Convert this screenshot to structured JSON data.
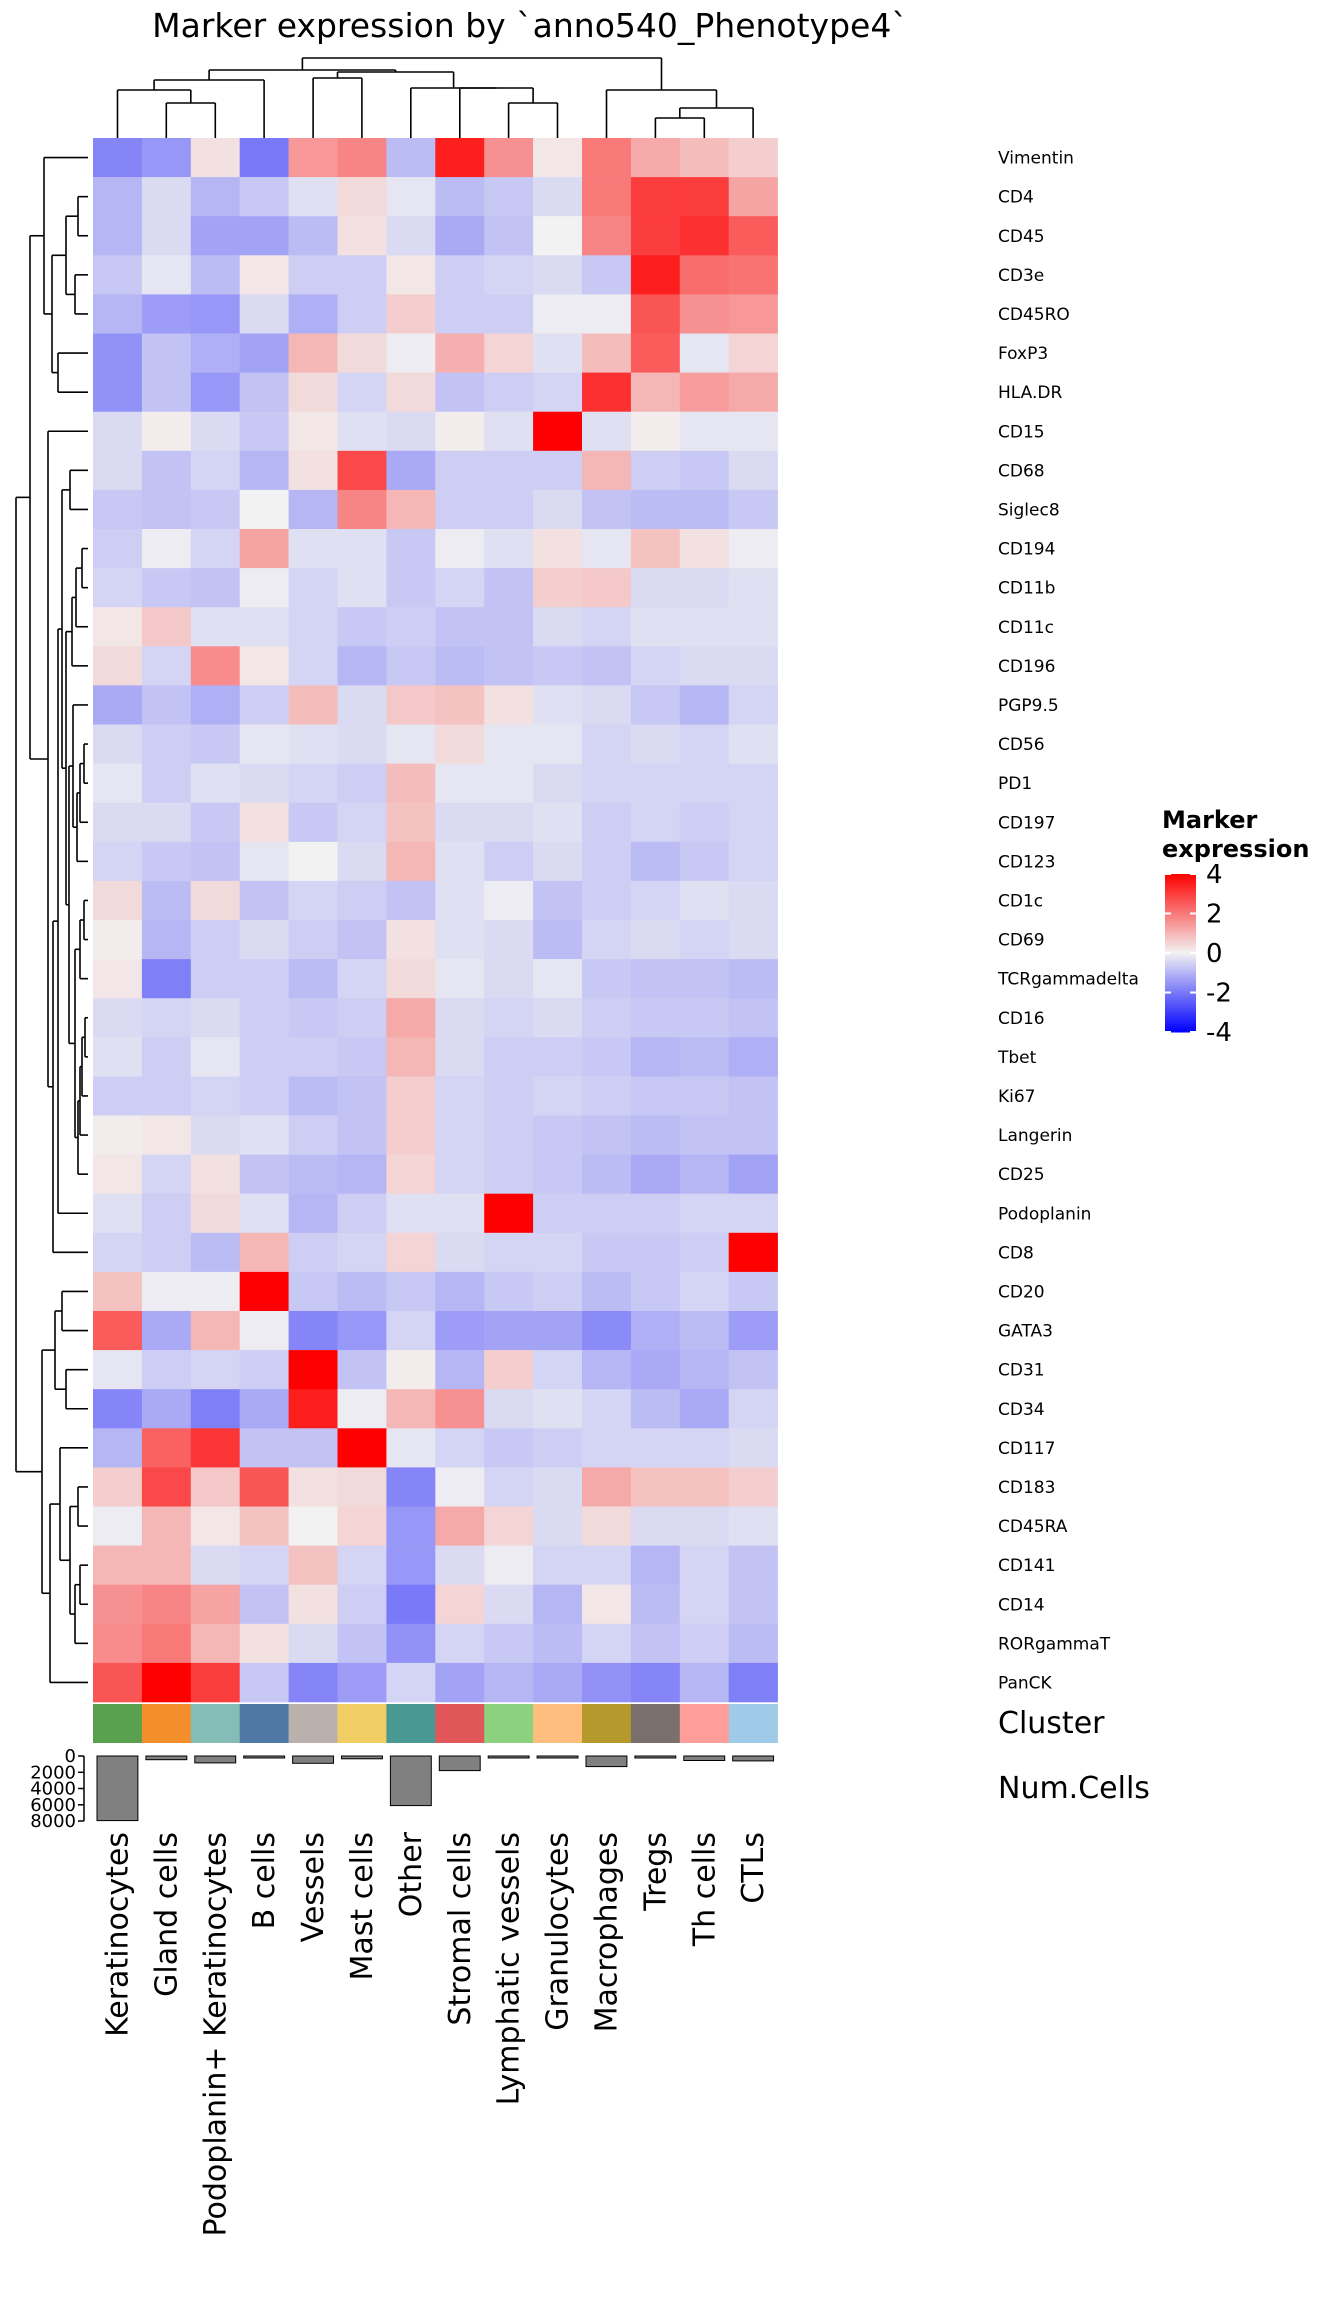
{
  "chart_data": {
    "type": "heatmap",
    "title": "Marker expression by `anno540_Phenotype4`",
    "columns": [
      "Keratinocytes",
      "Gland cells",
      "Podoplanin+ Keratinocytes",
      "B cells",
      "Vessels",
      "Mast cells",
      "Other",
      "Stromal cells",
      "Lymphatic vessels",
      "Granulocytes",
      "Macrophages",
      "Tregs",
      "Th cells",
      "CTLs"
    ],
    "rows": [
      "Vimentin",
      "CD4",
      "CD45",
      "CD3e",
      "CD45RO",
      "FoxP3",
      "HLA.DR",
      "CD15",
      "CD68",
      "Siglec8",
      "CD194",
      "CD11b",
      "CD11c",
      "CD196",
      "PGP9.5",
      "CD56",
      "PD1",
      "CD197",
      "CD123",
      "CD1c",
      "CD69",
      "TCRgammadelta",
      "CD16",
      "Tbet",
      "Ki67",
      "Langerin",
      "CD25",
      "Podoplanin",
      "CD8",
      "CD20",
      "GATA3",
      "CD31",
      "CD34",
      "CD117",
      "CD183",
      "CD45RA",
      "CD141",
      "CD14",
      "RORgammaT",
      "PanCK"
    ],
    "values": [
      [
        -1.8,
        -1.5,
        0.3,
        -2.0,
        1.5,
        1.8,
        -0.9,
        3.5,
        1.6,
        0.2,
        2.0,
        1.2,
        0.9,
        0.6
      ],
      [
        -1.0,
        -0.4,
        -1.0,
        -0.7,
        -0.3,
        0.4,
        -0.2,
        -0.9,
        -0.7,
        -0.4,
        2.0,
        3.0,
        3.0,
        1.3
      ],
      [
        -1.0,
        -0.4,
        -1.3,
        -1.3,
        -0.9,
        0.3,
        -0.4,
        -1.2,
        -0.8,
        0.0,
        1.8,
        3.0,
        3.2,
        2.5
      ],
      [
        -0.7,
        -0.2,
        -0.9,
        0.2,
        -0.6,
        -0.6,
        0.2,
        -0.6,
        -0.5,
        -0.4,
        -0.7,
        3.5,
        2.2,
        2.1
      ],
      [
        -1.0,
        -1.4,
        -1.5,
        -0.4,
        -1.1,
        -0.6,
        0.6,
        -0.6,
        -0.6,
        -0.1,
        -0.1,
        2.6,
        1.6,
        1.5
      ],
      [
        -1.6,
        -0.8,
        -1.1,
        -1.3,
        1.0,
        0.4,
        -0.1,
        1.1,
        0.5,
        -0.3,
        0.9,
        2.5,
        -0.2,
        0.5
      ],
      [
        -1.6,
        -0.8,
        -1.5,
        -0.8,
        0.4,
        -0.5,
        0.4,
        -0.8,
        -0.6,
        -0.5,
        3.2,
        1.0,
        1.4,
        1.2
      ],
      [
        -0.4,
        0.1,
        -0.4,
        -0.7,
        0.2,
        -0.3,
        -0.4,
        0.1,
        -0.3,
        4.0,
        -0.3,
        0.1,
        -0.2,
        -0.2
      ],
      [
        -0.4,
        -0.8,
        -0.5,
        -1.0,
        0.3,
        2.8,
        -1.2,
        -0.6,
        -0.6,
        -0.6,
        1.0,
        -0.6,
        -0.7,
        -0.4
      ],
      [
        -0.7,
        -0.8,
        -0.7,
        0.0,
        -1.0,
        1.8,
        1.0,
        -0.6,
        -0.6,
        -0.4,
        -0.8,
        -0.9,
        -0.9,
        -0.7
      ],
      [
        -0.6,
        -0.1,
        -0.5,
        1.3,
        -0.3,
        -0.3,
        -0.7,
        -0.1,
        -0.3,
        0.3,
        -0.2,
        0.8,
        0.3,
        -0.1
      ],
      [
        -0.5,
        -0.7,
        -0.8,
        -0.1,
        -0.5,
        -0.3,
        -0.7,
        -0.5,
        -0.8,
        0.6,
        0.7,
        -0.4,
        -0.4,
        -0.3
      ],
      [
        0.2,
        0.7,
        -0.3,
        -0.3,
        -0.5,
        -0.7,
        -0.6,
        -0.8,
        -0.8,
        -0.4,
        -0.5,
        -0.3,
        -0.3,
        -0.3
      ],
      [
        0.4,
        -0.5,
        1.7,
        0.2,
        -0.5,
        -1.0,
        -0.7,
        -0.9,
        -0.8,
        -0.7,
        -0.8,
        -0.5,
        -0.4,
        -0.4
      ],
      [
        -1.2,
        -0.8,
        -1.1,
        -0.6,
        0.9,
        -0.4,
        0.7,
        0.8,
        0.3,
        -0.3,
        -0.4,
        -0.7,
        -1.0,
        -0.5
      ],
      [
        -0.4,
        -0.6,
        -0.7,
        -0.2,
        -0.3,
        -0.4,
        -0.2,
        0.4,
        -0.2,
        -0.2,
        -0.5,
        -0.4,
        -0.5,
        -0.3
      ],
      [
        -0.2,
        -0.6,
        -0.3,
        -0.4,
        -0.5,
        -0.6,
        0.9,
        -0.2,
        -0.2,
        -0.4,
        -0.5,
        -0.5,
        -0.5,
        -0.5
      ],
      [
        -0.4,
        -0.4,
        -0.7,
        0.3,
        -0.7,
        -0.5,
        0.8,
        -0.4,
        -0.4,
        -0.3,
        -0.6,
        -0.5,
        -0.6,
        -0.5
      ],
      [
        -0.5,
        -0.7,
        -0.8,
        -0.2,
        0.0,
        -0.4,
        1.0,
        -0.3,
        -0.6,
        -0.4,
        -0.6,
        -0.9,
        -0.7,
        -0.5
      ],
      [
        0.4,
        -0.9,
        0.4,
        -0.8,
        -0.5,
        -0.6,
        -0.8,
        -0.3,
        -0.1,
        -0.8,
        -0.6,
        -0.5,
        -0.3,
        -0.4
      ],
      [
        0.1,
        -1.0,
        -0.6,
        -0.4,
        -0.6,
        -0.8,
        0.3,
        -0.3,
        -0.4,
        -0.9,
        -0.5,
        -0.4,
        -0.5,
        -0.4
      ],
      [
        0.2,
        -1.9,
        -0.6,
        -0.6,
        -0.9,
        -0.5,
        0.4,
        -0.2,
        -0.4,
        -0.2,
        -0.7,
        -0.8,
        -0.8,
        -0.9
      ],
      [
        -0.4,
        -0.5,
        -0.4,
        -0.6,
        -0.7,
        -0.6,
        1.2,
        -0.4,
        -0.5,
        -0.4,
        -0.6,
        -0.7,
        -0.7,
        -0.8
      ],
      [
        -0.3,
        -0.6,
        -0.2,
        -0.6,
        -0.6,
        -0.7,
        1.0,
        -0.4,
        -0.6,
        -0.6,
        -0.7,
        -1.0,
        -0.9,
        -1.1
      ],
      [
        -0.6,
        -0.6,
        -0.5,
        -0.6,
        -0.9,
        -0.8,
        0.6,
        -0.5,
        -0.6,
        -0.5,
        -0.6,
        -0.7,
        -0.7,
        -0.8
      ],
      [
        0.1,
        0.2,
        -0.4,
        -0.3,
        -0.6,
        -0.8,
        0.6,
        -0.5,
        -0.6,
        -0.7,
        -0.8,
        -0.9,
        -0.8,
        -0.8
      ],
      [
        0.2,
        -0.5,
        0.3,
        -0.8,
        -0.9,
        -1.0,
        0.5,
        -0.5,
        -0.6,
        -0.7,
        -0.9,
        -1.2,
        -1.0,
        -1.3
      ],
      [
        -0.3,
        -0.6,
        0.4,
        -0.3,
        -1.0,
        -0.6,
        -0.3,
        -0.3,
        4.0,
        -0.6,
        -0.6,
        -0.6,
        -0.5,
        -0.5
      ],
      [
        -0.5,
        -0.6,
        -0.9,
        1.0,
        -0.6,
        -0.5,
        0.5,
        -0.4,
        -0.5,
        -0.5,
        -0.7,
        -0.7,
        -0.6,
        4.0
      ],
      [
        0.8,
        -0.1,
        -0.1,
        4.0,
        -0.7,
        -0.9,
        -0.7,
        -1.0,
        -0.7,
        -0.6,
        -0.9,
        -0.7,
        -0.5,
        -0.7
      ],
      [
        2.5,
        -1.2,
        1.0,
        -0.1,
        -1.8,
        -1.5,
        -0.5,
        -1.4,
        -1.3,
        -1.3,
        -1.7,
        -1.1,
        -0.9,
        -1.4
      ],
      [
        -0.2,
        -0.6,
        -0.5,
        -0.6,
        4.0,
        -0.8,
        0.1,
        -1.0,
        0.6,
        -0.5,
        -1.0,
        -1.2,
        -1.0,
        -0.8
      ],
      [
        -1.8,
        -1.2,
        -1.9,
        -1.2,
        3.5,
        -0.1,
        1.0,
        1.6,
        -0.4,
        -0.3,
        -0.5,
        -0.9,
        -1.2,
        -0.5
      ],
      [
        -1.0,
        2.4,
        3.1,
        -0.8,
        -0.8,
        4.0,
        -0.2,
        -0.5,
        -0.7,
        -0.6,
        -0.5,
        -0.5,
        -0.5,
        -0.4
      ],
      [
        0.6,
        2.8,
        0.7,
        2.6,
        0.3,
        0.4,
        -1.8,
        -0.1,
        -0.5,
        -0.4,
        1.2,
        0.8,
        0.8,
        0.6
      ],
      [
        -0.1,
        1.0,
        0.2,
        0.8,
        0.0,
        0.5,
        -1.5,
        1.2,
        0.5,
        -0.4,
        0.4,
        -0.4,
        -0.4,
        -0.3
      ],
      [
        1.0,
        1.0,
        -0.4,
        -0.5,
        0.8,
        -0.5,
        -1.5,
        -0.4,
        -0.1,
        -0.5,
        -0.5,
        -1.0,
        -0.5,
        -0.8
      ],
      [
        1.6,
        1.8,
        1.3,
        -0.8,
        0.3,
        -0.6,
        -2.0,
        0.5,
        -0.4,
        -1.0,
        0.2,
        -0.9,
        -0.5,
        -0.8
      ],
      [
        1.7,
        2.0,
        1.0,
        0.3,
        -0.4,
        -0.8,
        -1.6,
        -0.5,
        -0.7,
        -0.9,
        -0.5,
        -0.8,
        -0.6,
        -0.9
      ],
      [
        2.6,
        4.0,
        3.0,
        -0.7,
        -1.8,
        -1.4,
        -0.5,
        -1.3,
        -1.0,
        -1.2,
        -1.6,
        -1.8,
        -1.0,
        -1.9
      ]
    ],
    "legend": {
      "title_lines": [
        "Marker",
        "expression"
      ],
      "ticks": [
        4,
        2,
        0,
        -2,
        -4
      ],
      "tick_labels": [
        "4",
        "2",
        "0",
        "-2",
        "-4"
      ],
      "range": [
        -4,
        4
      ],
      "colors": {
        "low": "#0000FF",
        "mid": "#F2F2F2",
        "high": "#FF0000"
      }
    },
    "annotation_cluster": {
      "label": "Cluster",
      "colors": [
        "#59A14F",
        "#F28E2B",
        "#86BCB6",
        "#4E79A7",
        "#BAB0AC",
        "#F1CE63",
        "#499894",
        "#E15759",
        "#8CD17D",
        "#FFBE7D",
        "#B6992D",
        "#79706E",
        "#FF9D9A",
        "#A0CBE8"
      ]
    },
    "annotation_num_cells": {
      "label": "Num.Cells",
      "axis_ticks": [
        0,
        2000,
        4000,
        6000,
        8000
      ],
      "axis_tick_labels": [
        "0",
        "2000",
        "4000",
        "6000",
        "8000"
      ],
      "axis_max": 8000,
      "values": [
        7950,
        450,
        850,
        80,
        900,
        350,
        6100,
        1800,
        150,
        80,
        1300,
        250,
        550,
        600
      ],
      "bar_color": "#808080"
    }
  }
}
